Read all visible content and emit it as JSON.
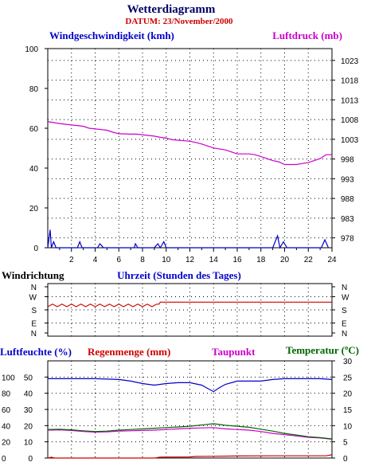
{
  "header": {
    "title": "Wetterdiagramm",
    "date_label": "DATUM: 23/November/2000"
  },
  "colors": {
    "title": "#000066",
    "date": "#cc0000",
    "wind": "#0000cc",
    "pressure": "#cc00cc",
    "direction": "#cc0000",
    "humidity": "#0000cc",
    "rain": "#cc0000",
    "dewpoint": "#cc00cc",
    "temperature": "#006600",
    "grid": "#000000"
  },
  "chart_data": [
    {
      "type": "line",
      "title": "",
      "left_label": "Windgeschwindigkeit (kmh)",
      "right_label": "Luftdruck (mb)",
      "xlabel": "Uhrzeit (Stunden des Tages)",
      "xlim": [
        0,
        24
      ],
      "xticks": [
        "2",
        "4",
        "6",
        "8",
        "10",
        "12",
        "14",
        "16",
        "18",
        "20",
        "22",
        "24"
      ],
      "yleft_lim": [
        0,
        100
      ],
      "yleft_ticks": [
        "0",
        "20",
        "40",
        "60",
        "80",
        "100"
      ],
      "yright_lim": [
        975.5,
        1026
      ],
      "yright_ticks": [
        "978",
        "983",
        "988",
        "993",
        "998",
        "1003",
        "1008",
        "1013",
        "1018",
        "1023"
      ],
      "grid": true,
      "series": [
        {
          "name": "Luftdruck (mb)",
          "axis": "right",
          "x": [
            0,
            0.6,
            1,
            1.5,
            3,
            3.5,
            5,
            5.5,
            6,
            7,
            7.5,
            9,
            9.5,
            10,
            10.5,
            12,
            12.5,
            13,
            13.5,
            14,
            15,
            15.5,
            16,
            17,
            17.5,
            18,
            18.5,
            19,
            19.5,
            20,
            20.5,
            21,
            22,
            22.5,
            23,
            23.5,
            24
          ],
          "values": [
            1007.5,
            1007.2,
            1007,
            1006.8,
            1006.3,
            1005.8,
            1005.3,
            1004.8,
            1004.4,
            1004.3,
            1004.3,
            1003.8,
            1003.5,
            1003.3,
            1002.9,
            1002.5,
            1002.2,
            1001.8,
            1001.3,
            1000.8,
            1000.3,
            999.8,
            999.3,
            999.3,
            999.1,
            998.6,
            998.1,
            997.6,
            997.3,
            996.6,
            996.6,
            996.6,
            997.1,
            997.6,
            998.1,
            999.1,
            999.1
          ]
        },
        {
          "name": "Windgeschwindigkeit (kmh)",
          "axis": "left",
          "x": [
            0,
            0.2,
            0.3,
            0.5,
            0.7,
            2.5,
            2.7,
            2.9,
            4.2,
            4.4,
            4.7,
            7.3,
            7.4,
            7.6,
            9.0,
            9.3,
            9.5,
            9.8,
            10.0,
            10.3,
            19.0,
            19.4,
            19.6,
            19.9,
            20.2,
            23.1,
            23.4,
            23.7
          ],
          "values": [
            0,
            9,
            0,
            3,
            0,
            0,
            3,
            0,
            0,
            2,
            0,
            0,
            2,
            0,
            0,
            2,
            0,
            3,
            0,
            0,
            0,
            6,
            0,
            3,
            0,
            0,
            4,
            0
          ]
        }
      ]
    },
    {
      "type": "line",
      "title": "Windrichtung",
      "xlim": [
        0,
        24
      ],
      "yticks": [
        "N",
        "W",
        "S",
        "E",
        "N"
      ],
      "grid": true,
      "series": [
        {
          "name": "Windrichtung",
          "x": [
            0,
            0.4,
            0.8,
            1.2,
            1.6,
            2.0,
            2.4,
            2.8,
            3.2,
            3.6,
            4.0,
            4.4,
            4.8,
            5.2,
            5.6,
            6.0,
            6.4,
            6.8,
            7.2,
            7.6,
            8.0,
            8.4,
            8.8,
            9.2,
            9.4,
            9.5,
            24
          ],
          "values": [
            205,
            225,
            205,
            225,
            205,
            225,
            205,
            225,
            205,
            225,
            205,
            225,
            205,
            225,
            205,
            225,
            205,
            225,
            205,
            225,
            205,
            225,
            205,
            225,
            225,
            240,
            240
          ]
        }
      ]
    },
    {
      "type": "line",
      "title": "",
      "left_labels": [
        "Luftfeuchte (%)",
        "Regenmenge (mm)"
      ],
      "right_labels": [
        "Taupunkt",
        "Temperatur (ºC)"
      ],
      "xlim": [
        0,
        24
      ],
      "yleft_outer_ticks": [
        "100",
        "80",
        "60",
        "40",
        "20",
        "0"
      ],
      "yleft_inner_ticks": [
        "50",
        "40",
        "30",
        "20",
        "10",
        "0"
      ],
      "yright_ticks": [
        "30",
        "25",
        "20",
        "15",
        "10",
        "5",
        "0"
      ],
      "grid": true,
      "series": [
        {
          "name": "Luftfeuchte (%)",
          "x": [
            0,
            2,
            4,
            6,
            7,
            8,
            9,
            10,
            11,
            12,
            13,
            13.5,
            14,
            14.5,
            15,
            16,
            17,
            18,
            19,
            20,
            21,
            22,
            23,
            24
          ],
          "values": [
            98,
            98,
            98,
            97,
            95,
            92,
            90,
            92,
            93,
            93,
            90,
            86,
            82,
            87,
            91,
            95,
            95,
            95,
            97,
            98,
            98,
            98,
            98,
            97
          ]
        },
        {
          "name": "Regenmenge (mm)",
          "x": [
            0,
            0.3,
            0.6,
            1,
            3,
            6,
            9,
            9.5,
            12,
            12.5,
            14,
            16,
            19,
            23.5,
            24
          ],
          "values": [
            0,
            0.5,
            0,
            0,
            0,
            0,
            0,
            0.6,
            0.7,
            1,
            1.1,
            1.3,
            1.4,
            1.4,
            2
          ]
        },
        {
          "name": "Taupunkt",
          "x": [
            0,
            1,
            2,
            3,
            4,
            5,
            6,
            7,
            8,
            9,
            10,
            11,
            12,
            13,
            14,
            15,
            16,
            17,
            18,
            19,
            20,
            21,
            22,
            23,
            24
          ],
          "values": [
            8.6,
            8.7,
            8.5,
            8.2,
            8.0,
            8.1,
            8.3,
            8.4,
            8.5,
            8.6,
            8.8,
            9.0,
            9.2,
            9.3,
            9.4,
            9.0,
            8.8,
            8.6,
            8.2,
            7.6,
            7.2,
            6.8,
            6.4,
            6.2,
            5.8
          ]
        },
        {
          "name": "Temperatur (ºC)",
          "x": [
            0,
            1,
            2,
            3,
            4,
            5,
            6,
            7,
            8,
            9,
            10,
            11,
            12,
            13,
            14,
            15,
            16,
            17,
            18,
            19,
            20,
            21,
            22,
            23,
            24
          ],
          "values": [
            8.8,
            8.9,
            8.7,
            8.4,
            8.2,
            8.3,
            8.6,
            8.8,
            9.0,
            9.2,
            9.4,
            9.6,
            9.8,
            10.2,
            10.6,
            10.1,
            9.8,
            9.5,
            8.9,
            8.3,
            7.6,
            7.1,
            6.6,
            6.3,
            5.9
          ]
        }
      ]
    }
  ]
}
